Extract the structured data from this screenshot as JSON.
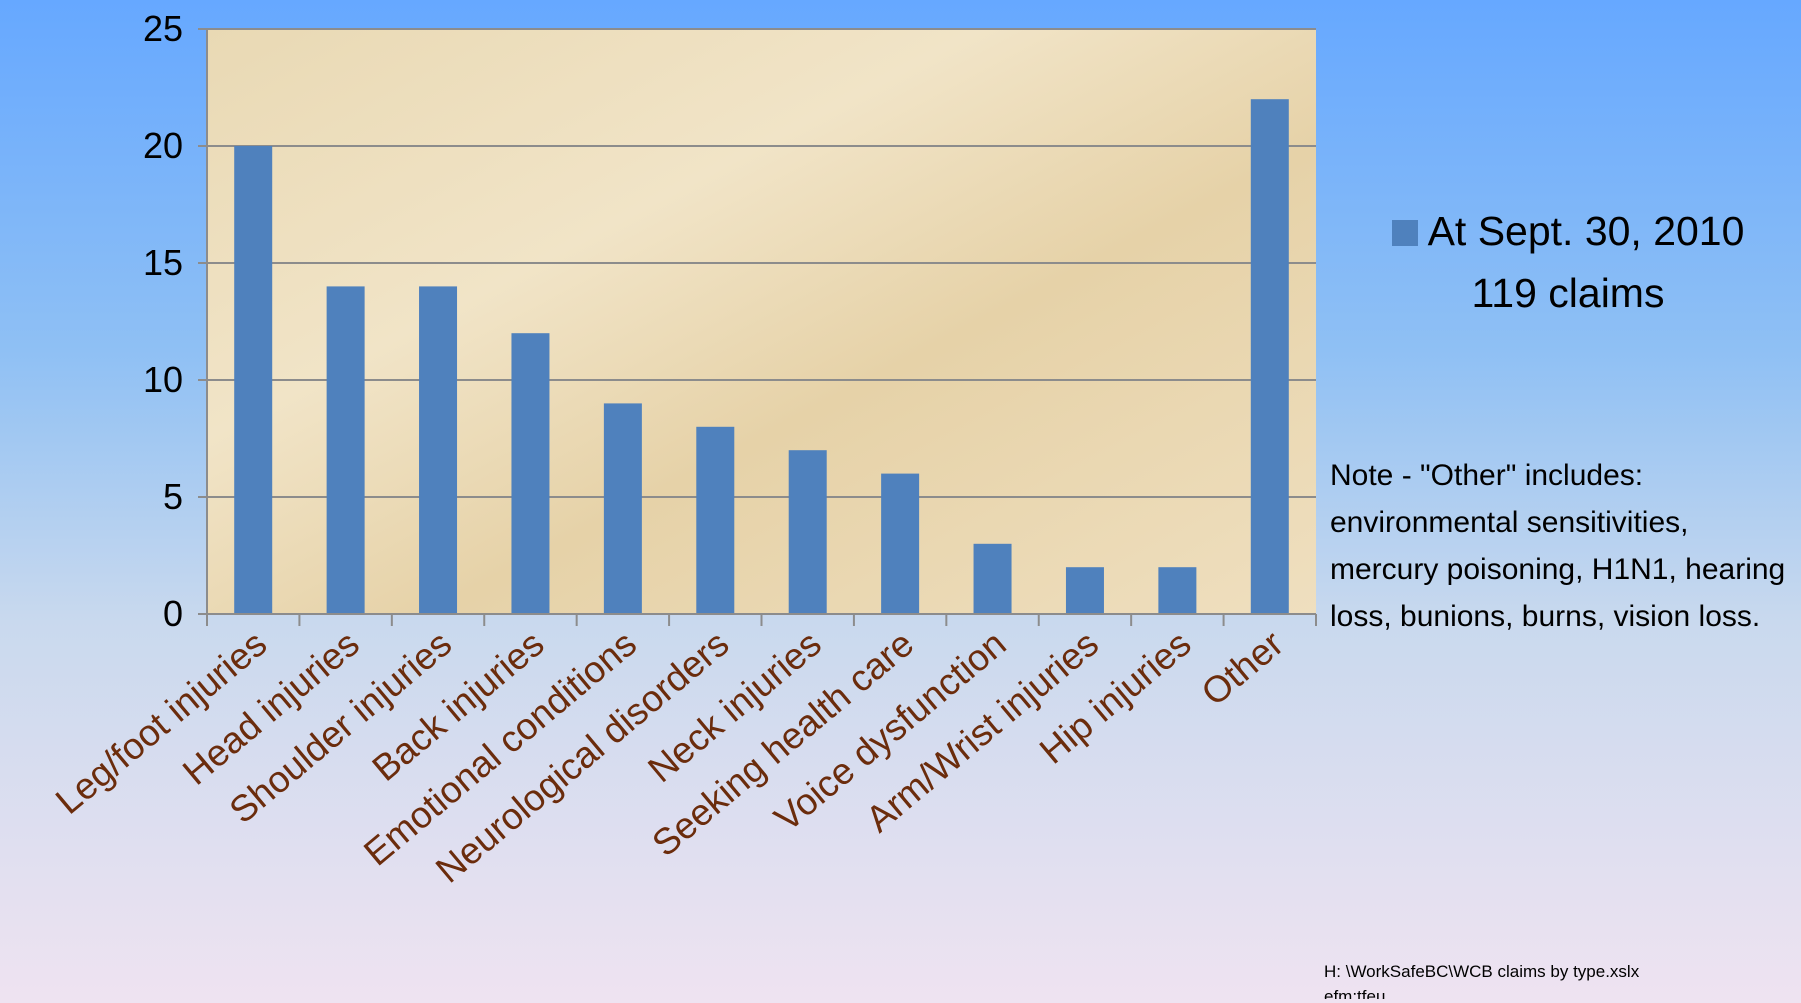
{
  "chart_data": {
    "type": "bar",
    "categories": [
      "Leg/foot injuries",
      "Head injuries",
      "Shoulder injuries",
      "Back injuries",
      "Emotional conditions",
      "Neurological disorders",
      "Neck injuries",
      "Seeking health care",
      "Voice dysfunction",
      "Arm/Wrist injuries",
      "Hip injuries",
      "Other"
    ],
    "series": [
      {
        "name": "At Sept. 30, 2010",
        "values": [
          20,
          14,
          14,
          12,
          9,
          8,
          7,
          6,
          3,
          2,
          2,
          22
        ]
      }
    ],
    "ylim": [
      0,
      25
    ],
    "yticks": [
      0,
      5,
      10,
      15,
      20,
      25
    ],
    "grid": true,
    "legend_position": "right",
    "colors": {
      "bar": "#4f81bd",
      "category_label": "#6b2c0c",
      "gridline": "#8c8c8c"
    }
  },
  "legend": {
    "line1": "At Sept. 30, 2010",
    "line2": "119 claims"
  },
  "note": "Note -   \"Other\"  includes: environmental sensitivities, mercury poisoning, H1N1, hearing loss, bunions, burns, vision loss.",
  "footer": "H: \\WorkSafeBC\\WCB claims by type.xslx\nefm:tfeu"
}
